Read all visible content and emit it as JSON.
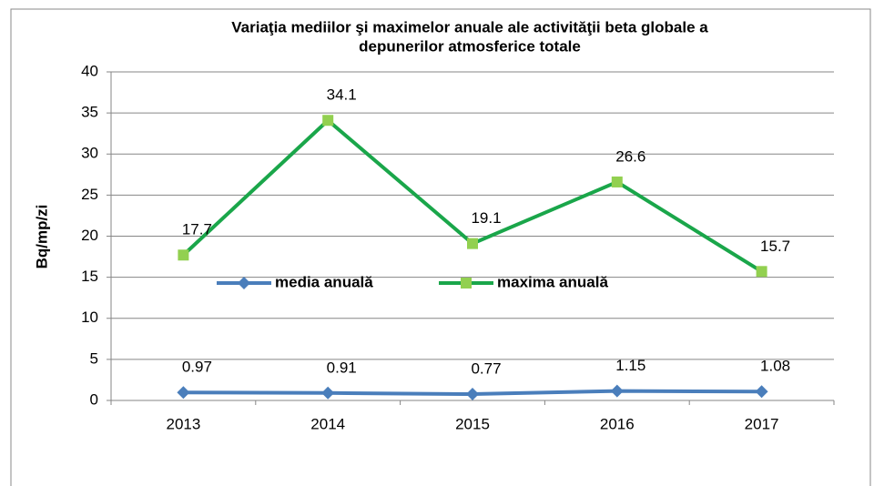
{
  "chart_data": {
    "type": "line",
    "title": [
      "Variaţia mediilor şi maximelor anuale ale activităţii beta globale a",
      "depunerilor atmosferice totale"
    ],
    "y_label": "Bq/mp/zi",
    "categories": [
      "2013",
      "2014",
      "2015",
      "2016",
      "2017"
    ],
    "series": [
      {
        "name": "media anuală",
        "color": "#4a7ebb",
        "marker": "diamond",
        "values": [
          0.97,
          0.91,
          0.77,
          1.15,
          1.08
        ]
      },
      {
        "name": "maxima anuală",
        "color": "#1aa64a",
        "marker_color": "#92d050",
        "marker": "square",
        "values": [
          17.7,
          34.1,
          19.1,
          26.6,
          15.7
        ]
      }
    ],
    "ylim": [
      0,
      40
    ],
    "yticks": [
      0,
      5,
      10,
      15,
      20,
      25,
      30,
      35,
      40
    ],
    "grid": true,
    "legend": "bottom"
  }
}
